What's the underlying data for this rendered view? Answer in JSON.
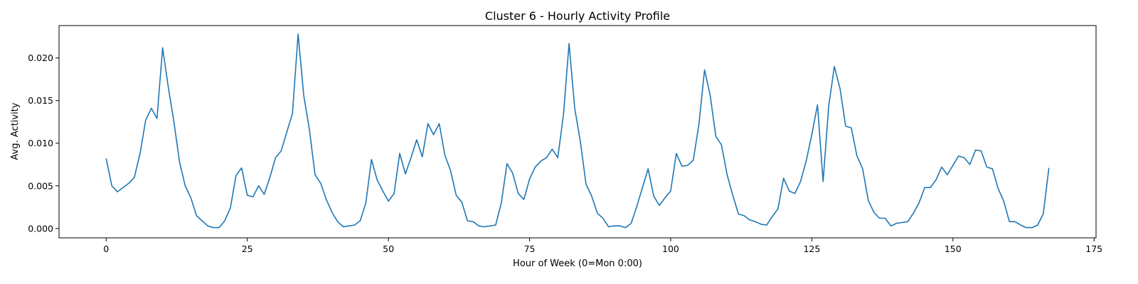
{
  "chart_data": {
    "type": "line",
    "title": "Cluster 6 - Hourly Activity Profile",
    "xlabel": "Hour of Week (0=Mon 0:00)",
    "ylabel": "Avg. Activity",
    "xlim": [
      -8.35,
      175.35
    ],
    "ylim": [
      -0.0011,
      0.0238
    ],
    "xticks": [
      0,
      25,
      50,
      75,
      100,
      125,
      150,
      175
    ],
    "xtick_labels": [
      "0",
      "25",
      "50",
      "75",
      "100",
      "125",
      "150",
      "175"
    ],
    "yticks": [
      0.0,
      0.005,
      0.01,
      0.015,
      0.02
    ],
    "ytick_labels": [
      "0.000",
      "0.005",
      "0.010",
      "0.015",
      "0.020"
    ],
    "grid": false,
    "line_color": "#1f77b4",
    "series": [
      {
        "x": [
          0,
          1,
          2,
          3,
          4,
          5,
          6,
          7,
          8,
          9,
          10,
          11,
          12,
          13,
          14,
          15,
          16,
          17,
          18,
          19,
          20,
          21,
          22,
          23,
          24,
          25,
          26,
          27,
          28,
          29,
          30,
          31,
          32,
          33,
          34,
          35,
          36,
          37,
          38,
          39,
          40,
          41,
          42,
          43,
          44,
          45,
          46,
          47,
          48,
          49,
          50,
          51,
          52,
          53,
          54,
          55,
          56,
          57,
          58,
          59,
          60,
          61,
          62,
          63,
          64,
          65,
          66,
          67,
          68,
          69,
          70,
          71,
          72,
          73,
          74,
          75,
          76,
          77,
          78,
          79,
          80,
          81,
          82,
          83,
          84,
          85,
          86,
          87,
          88,
          89,
          90,
          91,
          92,
          93,
          94,
          95,
          96,
          97,
          98,
          99,
          100,
          101,
          102,
          103,
          104,
          105,
          106,
          107,
          108,
          109,
          110,
          111,
          112,
          113,
          114,
          115,
          116,
          117,
          118,
          119,
          120,
          121,
          122,
          123,
          124,
          125,
          126,
          127,
          128,
          129,
          130,
          131,
          132,
          133,
          134,
          135,
          136,
          137,
          138,
          139,
          140,
          141,
          142,
          143,
          144,
          145,
          146,
          147,
          148,
          149,
          150,
          151,
          152,
          153,
          154,
          155,
          156,
          157,
          158,
          159,
          160,
          161,
          162,
          163,
          164,
          165,
          166,
          167
        ],
        "values": [
          0.0082,
          0.005,
          0.0043,
          0.0048,
          0.0053,
          0.006,
          0.0088,
          0.0127,
          0.0141,
          0.0129,
          0.0212,
          0.0166,
          0.0125,
          0.0078,
          0.005,
          0.0036,
          0.0015,
          0.0009,
          0.0003,
          0.0001,
          0.0001,
          0.0009,
          0.0024,
          0.0062,
          0.0071,
          0.0039,
          0.0037,
          0.005,
          0.004,
          0.006,
          0.0083,
          0.0091,
          0.0113,
          0.0135,
          0.0228,
          0.0156,
          0.0116,
          0.0063,
          0.0053,
          0.0034,
          0.0019,
          0.0008,
          0.0002,
          0.0003,
          0.0004,
          0.0009,
          0.003,
          0.0081,
          0.0057,
          0.0044,
          0.0032,
          0.0041,
          0.0088,
          0.0064,
          0.0083,
          0.0104,
          0.0084,
          0.0123,
          0.011,
          0.0123,
          0.0086,
          0.0068,
          0.0039,
          0.0031,
          0.0009,
          0.0008,
          0.0003,
          0.0002,
          0.0003,
          0.0004,
          0.003,
          0.0076,
          0.0065,
          0.0041,
          0.0034,
          0.0058,
          0.0072,
          0.0079,
          0.0083,
          0.0093,
          0.0083,
          0.0133,
          0.0217,
          0.0141,
          0.0102,
          0.0052,
          0.0038,
          0.0018,
          0.0012,
          0.0002,
          0.0003,
          0.0003,
          0.0001,
          0.0006,
          0.0026,
          0.0048,
          0.007,
          0.0038,
          0.0027,
          0.0036,
          0.0044,
          0.0088,
          0.0073,
          0.0074,
          0.008,
          0.0122,
          0.0186,
          0.0156,
          0.0108,
          0.0098,
          0.0063,
          0.0039,
          0.0017,
          0.0015,
          0.001,
          0.0008,
          0.0005,
          0.0004,
          0.0014,
          0.0023,
          0.0059,
          0.0044,
          0.0041,
          0.0055,
          0.0079,
          0.011,
          0.0145,
          0.0055,
          0.0144,
          0.019,
          0.0164,
          0.012,
          0.0118,
          0.0085,
          0.007,
          0.0033,
          0.0019,
          0.0012,
          0.0012,
          0.0003,
          0.0006,
          0.0007,
          0.0008,
          0.0018,
          0.003,
          0.0048,
          0.0048,
          0.0057,
          0.0072,
          0.0063,
          0.0074,
          0.0085,
          0.0083,
          0.0075,
          0.0092,
          0.0091,
          0.0072,
          0.007,
          0.0047,
          0.0032,
          0.0008,
          0.0008,
          0.0004,
          0.0001,
          0.0001,
          0.0004,
          0.0017,
          0.0071
        ]
      }
    ]
  }
}
